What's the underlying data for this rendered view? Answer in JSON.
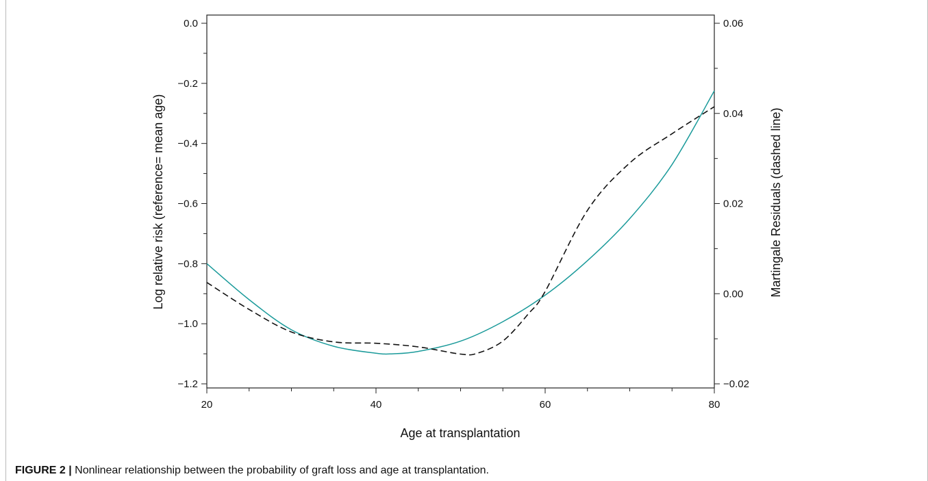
{
  "chart_data": {
    "type": "line",
    "title": "",
    "xlabel": "Age at transplantation",
    "ylabel_left": "Log relative risk (reference= mean age)",
    "ylabel_right": "Martingale Residuals (dashed line)",
    "xlim": [
      20,
      80
    ],
    "ylim_left": [
      -1.2,
      0.0
    ],
    "ylim_right": [
      -0.02,
      0.06
    ],
    "x_ticks": [
      "20",
      "40",
      "60",
      "80"
    ],
    "y_left_ticks": [
      "0.0",
      "−0.2",
      "−0.4",
      "−0.6",
      "−0.8",
      "−1.0",
      "−1.2"
    ],
    "y_right_ticks": [
      "0.06",
      "0.04",
      "0.02",
      "0.00",
      "−0.02"
    ],
    "grid": false,
    "series": [
      {
        "axis": "left",
        "style": "solid",
        "color": "#1a9a9a",
        "x": [
          20,
          25,
          30,
          35,
          40,
          42,
          45,
          50,
          55,
          60,
          65,
          70,
          75,
          80
        ],
        "y": [
          -0.8,
          -0.92,
          -1.02,
          -1.075,
          -1.098,
          -1.1,
          -1.092,
          -1.058,
          -0.993,
          -0.905,
          -0.79,
          -0.65,
          -0.47,
          -0.225
        ]
      },
      {
        "axis": "right",
        "style": "dashed",
        "color": "#111111",
        "x": [
          20,
          25,
          30,
          35,
          40,
          45,
          50,
          52,
          55,
          58,
          60,
          65,
          70,
          75,
          80
        ],
        "y": [
          0.0025,
          -0.0035,
          -0.0085,
          -0.0107,
          -0.011,
          -0.0118,
          -0.0134,
          -0.0132,
          -0.0105,
          -0.0045,
          0.0005,
          0.0185,
          0.029,
          0.0355,
          0.0415
        ]
      }
    ]
  },
  "caption": {
    "label": "FIGURE 2 |",
    "text": " Nonlinear relationship between the probability of graft loss and age at transplantation."
  }
}
